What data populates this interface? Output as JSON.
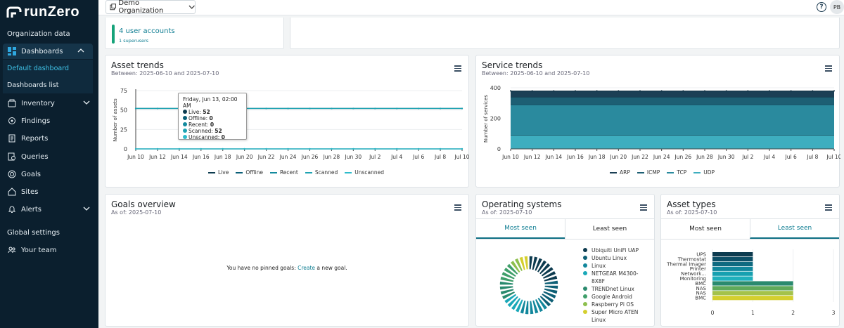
{
  "app": {
    "logo_text": "runZero"
  },
  "sidebar": {
    "section1": "Organization data",
    "dashboards": "Dashboards",
    "sub_default": "Default dashboard",
    "sub_list": "Dashboards list",
    "items": [
      {
        "label": "Inventory",
        "icon": "inventory-icon"
      },
      {
        "label": "Findings",
        "icon": "findings-icon"
      },
      {
        "label": "Reports",
        "icon": "reports-icon"
      },
      {
        "label": "Queries",
        "icon": "queries-icon"
      },
      {
        "label": "Goals",
        "icon": "goals-icon"
      },
      {
        "label": "Sites",
        "icon": "sites-icon"
      },
      {
        "label": "Alerts",
        "icon": "alerts-icon"
      }
    ],
    "global": "Global settings",
    "team": "Your team"
  },
  "topbar": {
    "org": "Demo Organization",
    "help": "?",
    "avatar": "PB"
  },
  "accounts": {
    "count_text": "4 user accounts",
    "super_text": "1 superusers"
  },
  "asset_trends": {
    "title": "Asset trends",
    "sub": "Between: 2025-06-10 and 2025-07-10",
    "ylabel": "Number of assets",
    "yticks": [
      "75",
      "50",
      "25",
      "0"
    ],
    "xticks": [
      "Jun 10",
      "Jun 12",
      "Jun 14",
      "Jun 16",
      "Jun 18",
      "Jun 20",
      "Jun 22",
      "Jun 24",
      "Jun 26",
      "Jun 28",
      "Jun 30",
      "Jul 2",
      "Jul 4",
      "Jul 6",
      "Jul 8",
      "Jul 10"
    ],
    "legend": [
      "Live",
      "Offline",
      "Recent",
      "Scanned",
      "Unscanned"
    ],
    "colors": [
      "#0d3b4f",
      "#0b5f78",
      "#138a9e",
      "#1fa3b2",
      "#2fbccb"
    ],
    "tooltip": {
      "date": "Friday, Jun 13, 02:00 AM",
      "rows": [
        {
          "label": "Live:",
          "value": "52"
        },
        {
          "label": "Offline:",
          "value": "0"
        },
        {
          "label": "Recent:",
          "value": "0"
        },
        {
          "label": "Scanned:",
          "value": "52"
        },
        {
          "label": "Unscanned:",
          "value": "0"
        }
      ]
    }
  },
  "service_trends": {
    "title": "Service trends",
    "sub": "Between: 2025-06-10 and 2025-07-10",
    "ylabel": "Number of services",
    "yticks": [
      "400",
      "200",
      "0"
    ],
    "xticks": [
      "Jun 10",
      "Jun 12",
      "Jun 14",
      "Jun 16",
      "Jun 18",
      "Jun 20",
      "Jun 22",
      "Jun 24",
      "Jun 26",
      "Jun 28",
      "Jun 30",
      "Jul 2",
      "Jul 4",
      "Jul 6",
      "Jul 8",
      "Jul 10"
    ],
    "legend": [
      "ARP",
      "ICMP",
      "TCP",
      "UDP"
    ],
    "colors": [
      "#1b3f55",
      "#1d5f74",
      "#2a8a9e",
      "#3eaebf"
    ]
  },
  "goals": {
    "title": "Goals overview",
    "sub": "As of: 2025-07-10",
    "empty_prefix": "You have no pinned goals: ",
    "empty_link": "Create",
    "empty_suffix": " a new goal."
  },
  "os": {
    "title": "Operating systems",
    "sub": "As of: 2025-07-10",
    "tabs": [
      "Most seen",
      "Least seen"
    ],
    "items": [
      "Ubiquiti UniFi UAP",
      "Ubuntu Linux",
      "Linux",
      "NETGEAR M4300-8X8F",
      "TRENDnet Linux",
      "Google Android",
      "Raspberry Pi OS",
      "Super Micro ATEN Linux"
    ],
    "colors": [
      "#0d3b4f",
      "#0d5f75",
      "#12879c",
      "#1aa8b8",
      "#2a8a6e",
      "#3f9f6a",
      "#8dbf4e",
      "#d4cf2e"
    ]
  },
  "asset_types": {
    "title": "Asset types",
    "sub": "As of: 2025-07-10",
    "tabs": [
      "Most seen",
      "Least seen"
    ],
    "xticks": [
      "0",
      "1",
      "2",
      "3"
    ]
  },
  "chart_data": [
    {
      "type": "line",
      "title": "Asset trends",
      "ylabel": "Number of assets",
      "ylim": [
        0,
        75
      ],
      "x": [
        "Jun 10",
        "Jun 12",
        "Jun 14",
        "Jun 16",
        "Jun 18",
        "Jun 20",
        "Jun 22",
        "Jun 24",
        "Jun 26",
        "Jun 28",
        "Jun 30",
        "Jul 2",
        "Jul 4",
        "Jul 6",
        "Jul 8",
        "Jul 10"
      ],
      "series": [
        {
          "name": "Live",
          "values": [
            52,
            52,
            52,
            52,
            52,
            52,
            52,
            52,
            52,
            52,
            52,
            52,
            52,
            52,
            52,
            52
          ]
        },
        {
          "name": "Offline",
          "values": [
            0,
            0,
            0,
            0,
            0,
            0,
            0,
            0,
            0,
            0,
            0,
            0,
            0,
            0,
            0,
            0
          ]
        },
        {
          "name": "Recent",
          "values": [
            0,
            0,
            0,
            0,
            0,
            0,
            0,
            0,
            0,
            0,
            0,
            0,
            0,
            0,
            0,
            0
          ]
        },
        {
          "name": "Scanned",
          "values": [
            52,
            52,
            52,
            52,
            52,
            52,
            52,
            52,
            52,
            52,
            52,
            52,
            52,
            52,
            52,
            52
          ]
        },
        {
          "name": "Unscanned",
          "values": [
            0,
            0,
            0,
            0,
            0,
            0,
            0,
            0,
            0,
            0,
            0,
            0,
            0,
            0,
            0,
            0
          ]
        }
      ]
    },
    {
      "type": "area",
      "title": "Service trends",
      "ylabel": "Number of services",
      "ylim": [
        0,
        400
      ],
      "x": [
        "Jun 10",
        "Jun 12",
        "Jun 14",
        "Jun 16",
        "Jun 18",
        "Jun 20",
        "Jun 22",
        "Jun 24",
        "Jun 26",
        "Jun 28",
        "Jun 30",
        "Jul 2",
        "Jul 4",
        "Jul 6",
        "Jul 8",
        "Jul 10"
      ],
      "stacked": true,
      "series": [
        {
          "name": "UDP",
          "values": [
            90,
            90,
            90,
            90,
            90,
            90,
            90,
            90,
            90,
            90,
            90,
            90,
            90,
            90,
            90,
            90
          ]
        },
        {
          "name": "TCP",
          "values": [
            200,
            200,
            200,
            200,
            200,
            200,
            200,
            200,
            200,
            200,
            200,
            200,
            200,
            200,
            200,
            200
          ]
        },
        {
          "name": "ICMP",
          "values": [
            50,
            50,
            50,
            50,
            50,
            50,
            50,
            50,
            50,
            50,
            50,
            50,
            50,
            50,
            50,
            50
          ]
        },
        {
          "name": "ARP",
          "values": [
            40,
            40,
            40,
            40,
            40,
            40,
            40,
            40,
            40,
            40,
            40,
            40,
            40,
            40,
            40,
            40
          ]
        }
      ]
    },
    {
      "type": "pie",
      "title": "Operating systems",
      "categories": [
        "Ubiquiti UniFi UAP",
        "Ubuntu Linux",
        "Linux",
        "NETGEAR M4300-8X8F",
        "TRENDnet Linux",
        "Google Android",
        "Raspberry Pi OS",
        "Super Micro ATEN Linux"
      ],
      "values": [
        4,
        3,
        3,
        2,
        2,
        2,
        1,
        1
      ]
    },
    {
      "type": "bar",
      "title": "Asset types",
      "orientation": "horizontal",
      "categories": [
        "UPS",
        "Thermostat",
        "Thermal Imager",
        "Printer",
        "Network...",
        "Monitoring",
        "BMC",
        "NAS",
        "NAS",
        "BMC"
      ],
      "values": [
        1,
        1,
        1,
        1,
        1,
        1,
        2,
        2,
        2,
        2
      ],
      "colors": [
        "#0d3b4f",
        "#0d4f66",
        "#0f6a80",
        "#12879c",
        "#16a0b0",
        "#20b0bc",
        "#2a8a6e",
        "#5fa95a",
        "#a4c24a",
        "#d4cf2e"
      ],
      "xlim": [
        0,
        3
      ]
    }
  ]
}
